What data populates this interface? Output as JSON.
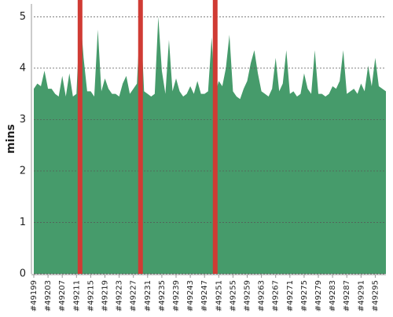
{
  "chart_data": {
    "type": "area",
    "y_label": "mins",
    "categories": [
      "#49199",
      null,
      null,
      null,
      "#49203",
      null,
      null,
      null,
      "#49207",
      null,
      null,
      null,
      "#49211",
      null,
      null,
      null,
      "#49215",
      null,
      null,
      null,
      "#49219",
      null,
      null,
      null,
      "#49223",
      null,
      null,
      null,
      "#49227",
      null,
      null,
      null,
      "#49231",
      null,
      null,
      null,
      "#49235",
      null,
      null,
      null,
      "#49239",
      null,
      null,
      null,
      "#49243",
      null,
      null,
      null,
      "#49247",
      null,
      null,
      null,
      "#49251",
      null,
      null,
      null,
      "#49255",
      null,
      null,
      null,
      "#49259",
      null,
      null,
      null,
      "#49263",
      null,
      null,
      null,
      "#49267",
      null,
      null,
      null,
      "#49271",
      null,
      null,
      null,
      "#49275",
      null,
      null,
      null,
      "#49279",
      null,
      null,
      null,
      "#49283",
      null,
      null,
      null,
      "#49287",
      null,
      null,
      null,
      "#49291",
      null,
      null,
      null,
      "#49295",
      null,
      null,
      null
    ],
    "values": [
      3.6,
      3.7,
      3.65,
      3.95,
      3.6,
      3.6,
      3.5,
      3.45,
      3.85,
      3.45,
      3.9,
      3.45,
      3.5,
      5.1,
      4.2,
      3.55,
      3.55,
      3.45,
      4.75,
      3.55,
      3.8,
      3.6,
      3.5,
      3.5,
      3.45,
      3.7,
      3.85,
      3.5,
      3.6,
      3.7,
      5.1,
      3.55,
      3.5,
      3.45,
      3.5,
      5.0,
      3.95,
      3.5,
      4.55,
      3.55,
      3.8,
      3.55,
      3.45,
      3.5,
      3.65,
      3.5,
      3.75,
      3.5,
      3.5,
      3.55,
      4.6,
      3.5,
      3.75,
      3.65,
      4.0,
      4.65,
      3.55,
      3.45,
      3.4,
      3.6,
      3.75,
      4.1,
      4.35,
      3.9,
      3.55,
      3.5,
      3.45,
      3.6,
      4.2,
      3.55,
      3.7,
      4.35,
      3.5,
      3.55,
      3.45,
      3.5,
      3.9,
      3.6,
      3.5,
      4.35,
      3.5,
      3.5,
      3.45,
      3.5,
      3.65,
      3.6,
      3.75,
      4.35,
      3.5,
      3.55,
      3.6,
      3.5,
      3.7,
      3.55,
      4.05,
      3.65,
      4.2,
      3.65,
      3.6,
      3.55
    ],
    "color": "#469b6b",
    "markers": [
      13,
      30,
      51
    ],
    "marker_color": "#d03b34",
    "ylim": [
      0,
      5.25
    ],
    "yticks": [
      0,
      1,
      2,
      3,
      4,
      5
    ],
    "grid": true
  }
}
